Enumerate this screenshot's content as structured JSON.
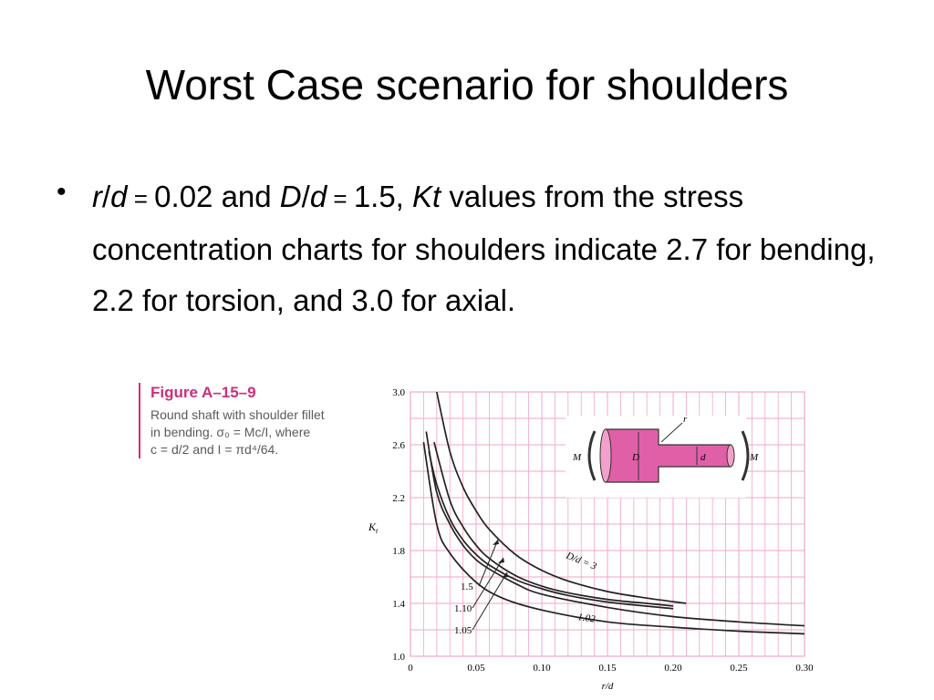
{
  "slide": {
    "title": "Worst Case scenario for shoulders",
    "bullet_symbol": "•",
    "body": {
      "r": "r",
      "slash1": "/",
      "d1": "d",
      "eq1": " = ",
      "val1": "0.02 and ",
      "D": "D",
      "slash2": "/",
      "d2": "d",
      "eq2": " = ",
      "val2": "1.5, ",
      "Kt": "Kt",
      "rest": " values from the stress concentration charts for shoulders indicate 2.7 for bending, 2.2 for torsion, and 3.0 for axial."
    }
  },
  "figure": {
    "title": "Figure A–15–9",
    "caption_line1": "Round shaft with shoulder fillet",
    "caption_line2": "in bending. σ₀ = Mc/I, where",
    "caption_line3": "c = d/2 and I = πd⁴/64."
  },
  "colors": {
    "grid": "#f2a6c8",
    "curve": "#222222",
    "accent": "#cc2f7a",
    "shaft_fill": "#e060a8"
  },
  "chart_data": {
    "type": "line",
    "xlabel": "r/d",
    "ylabel": "K_t",
    "xlim": [
      0,
      0.3
    ],
    "ylim": [
      1.0,
      3.0
    ],
    "x_ticks": [
      "0",
      "0.05",
      "0.10",
      "0.15",
      "0.20",
      "0.25",
      "0.30"
    ],
    "y_ticks": [
      "1.0",
      "1.4",
      "1.8",
      "2.2",
      "2.6",
      "3.0"
    ],
    "grid": true,
    "series": [
      {
        "name": "D/d = 3",
        "label_text": "D/d = 3",
        "x": [
          0.02,
          0.03,
          0.04,
          0.05,
          0.06,
          0.08,
          0.1,
          0.12,
          0.15,
          0.18,
          0.21
        ],
        "y": [
          3.0,
          2.55,
          2.28,
          2.1,
          1.96,
          1.77,
          1.65,
          1.57,
          1.49,
          1.44,
          1.4
        ]
      },
      {
        "name": "1.5",
        "label_text": "1.5",
        "x": [
          0.018,
          0.03,
          0.04,
          0.05,
          0.06,
          0.08,
          0.1,
          0.12,
          0.15,
          0.18,
          0.2
        ],
        "y": [
          2.62,
          2.18,
          1.98,
          1.84,
          1.74,
          1.61,
          1.53,
          1.48,
          1.43,
          1.4,
          1.38
        ]
      },
      {
        "name": "1.10",
        "label_text": "1.10",
        "x": [
          0.014,
          0.02,
          0.03,
          0.04,
          0.05,
          0.06,
          0.08,
          0.1,
          0.12,
          0.15,
          0.2
        ],
        "y": [
          2.55,
          2.3,
          2.04,
          1.88,
          1.77,
          1.69,
          1.58,
          1.51,
          1.46,
          1.41,
          1.36
        ]
      },
      {
        "name": "1.02",
        "label_text": "1.02",
        "x": [
          0.01,
          0.02,
          0.03,
          0.05,
          0.07,
          0.1,
          0.15,
          0.2,
          0.25,
          0.3
        ],
        "y": [
          2.62,
          2.0,
          1.78,
          1.56,
          1.44,
          1.35,
          1.26,
          1.22,
          1.19,
          1.17
        ]
      },
      {
        "name": "1.05",
        "label_text": "1.05",
        "x": [
          0.012,
          0.02,
          0.03,
          0.04,
          0.05,
          0.06,
          0.08,
          0.1,
          0.15,
          0.2,
          0.25,
          0.3
        ],
        "y": [
          2.7,
          2.24,
          2.0,
          1.84,
          1.73,
          1.66,
          1.55,
          1.47,
          1.37,
          1.3,
          1.26,
          1.23
        ]
      }
    ],
    "inset_labels": {
      "r": "r",
      "D": "D",
      "d": "d",
      "M_left": "M",
      "M_right": "M"
    }
  }
}
